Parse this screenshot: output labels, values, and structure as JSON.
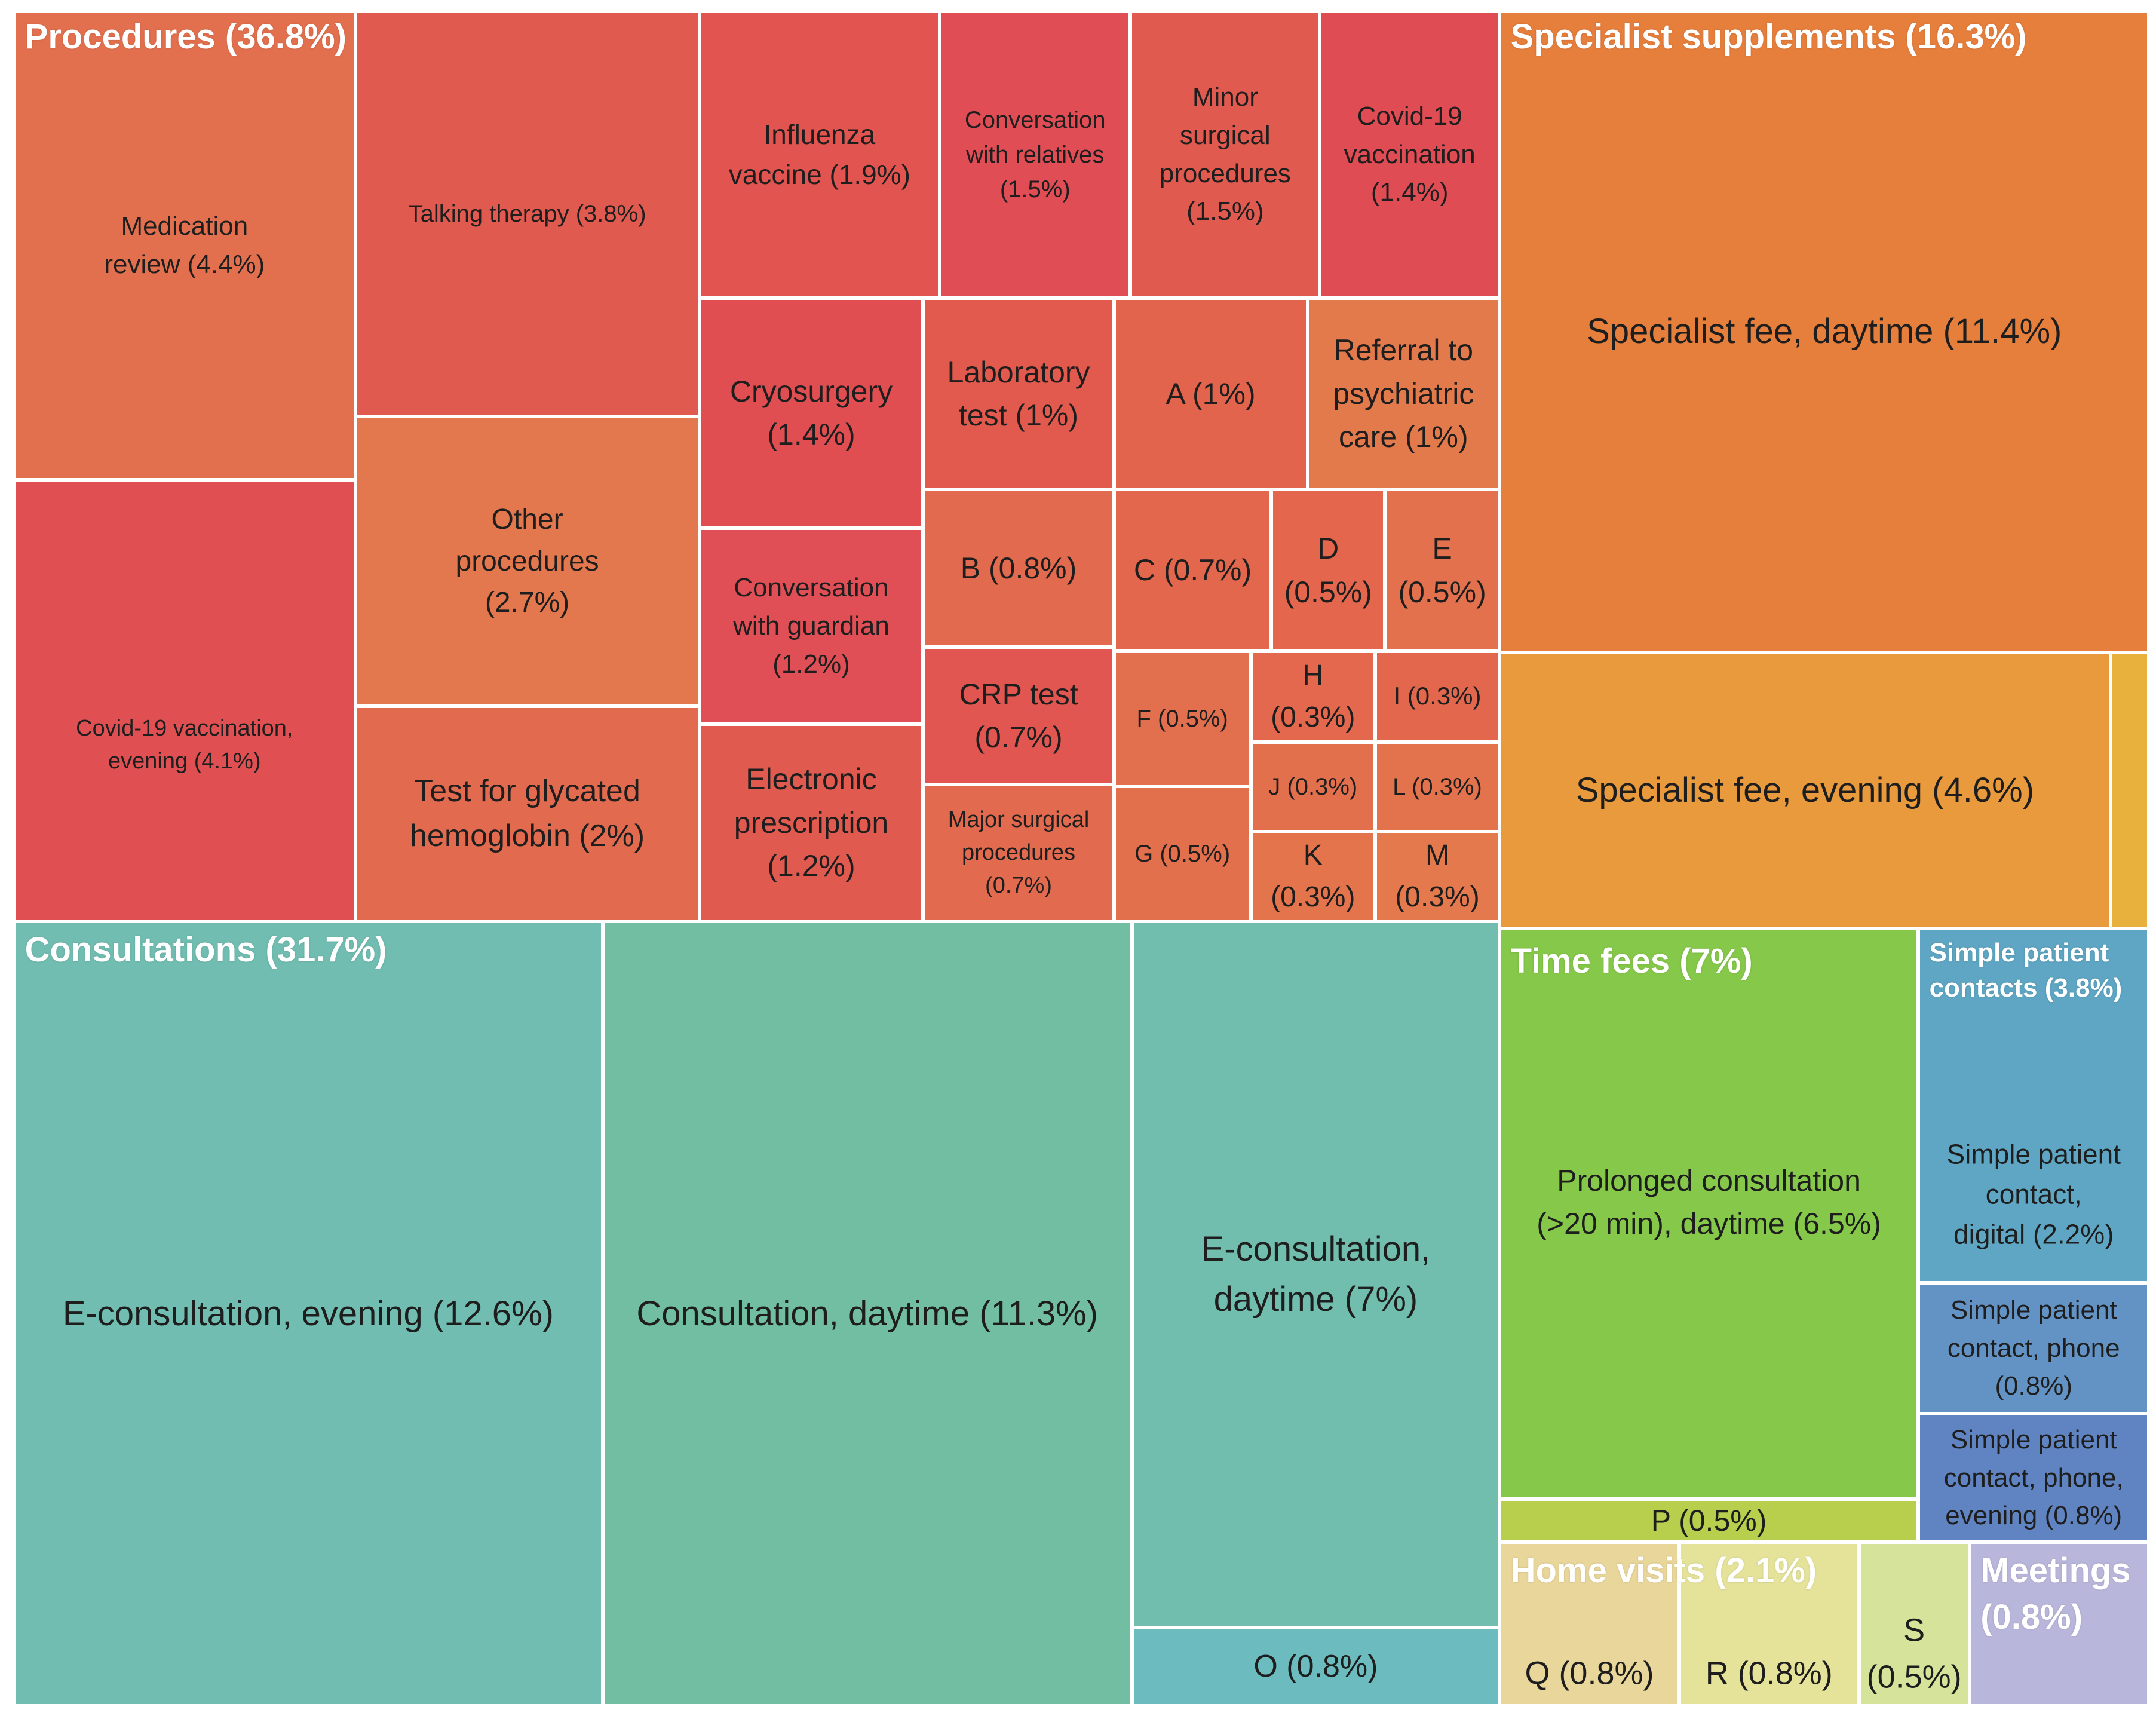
{
  "chart_data": {
    "type": "treemap",
    "title": "",
    "unit": "%",
    "groups": [
      {
        "label": "Procedures (36.8%)",
        "name": "Procedures",
        "value": 36.8,
        "color": "#e4604f",
        "items": [
          {
            "label": "Medication\nreview (4.4%)",
            "name": "Medication review",
            "value": 4.4,
            "color": "#e2704e"
          },
          {
            "label": "Covid-19 vaccination,\nevening (4.1%)",
            "name": "Covid-19 vaccination, evening",
            "value": 4.1,
            "color": "#e05052"
          },
          {
            "label": "Talking therapy (3.8%)",
            "name": "Talking therapy",
            "value": 3.8,
            "color": "#e15a4f"
          },
          {
            "label": "Other\nprocedures\n(2.7%)",
            "name": "Other procedures",
            "value": 2.7,
            "color": "#e3774d"
          },
          {
            "label": "Test for glycated\nhemoglobin (2%)",
            "name": "Test for glycated hemoglobin",
            "value": 2.0,
            "color": "#e26a4e"
          },
          {
            "label": "Influenza\nvaccine (1.9%)",
            "name": "Influenza vaccine",
            "value": 1.9,
            "color": "#e25450"
          },
          {
            "label": "Conversation\nwith relatives\n(1.5%)",
            "name": "Conversation with relatives",
            "value": 1.5,
            "color": "#e04d55"
          },
          {
            "label": "Minor\nsurgical\nprocedures\n(1.5%)",
            "name": "Minor surgical procedures",
            "value": 1.5,
            "color": "#e15a4f"
          },
          {
            "label": "Covid-19\nvaccination\n(1.4%)",
            "name": "Covid-19 vaccination",
            "value": 1.4,
            "color": "#e04c53"
          },
          {
            "label": "Cryosurgery\n(1.4%)",
            "name": "Cryosurgery",
            "value": 1.4,
            "color": "#e14e51"
          },
          {
            "label": "Laboratory\ntest (1%)",
            "name": "Laboratory test",
            "value": 1.0,
            "color": "#e25a4e"
          },
          {
            "label": "A (1%)",
            "name": "A",
            "value": 1.0,
            "color": "#e3644d"
          },
          {
            "label": "Referral to\npsychiatric\ncare (1%)",
            "name": "Referral to psychiatric care",
            "value": 1.0,
            "color": "#e37a4c"
          },
          {
            "label": "Conversation\nwith guardian\n(1.2%)",
            "name": "Conversation with guardian",
            "value": 1.2,
            "color": "#e04f56"
          },
          {
            "label": "Electronic\nprescription\n(1.2%)",
            "name": "Electronic prescription",
            "value": 1.2,
            "color": "#e15a4f"
          },
          {
            "label": "B (0.8%)",
            "name": "B",
            "value": 0.8,
            "color": "#e26a4e"
          },
          {
            "label": "C (0.7%)",
            "name": "C",
            "value": 0.7,
            "color": "#e3674d"
          },
          {
            "label": "D\n(0.5%)",
            "name": "D",
            "value": 0.5,
            "color": "#e3664d"
          },
          {
            "label": "E\n(0.5%)",
            "name": "E",
            "value": 0.5,
            "color": "#e3714d"
          },
          {
            "label": "CRP test\n(0.7%)",
            "name": "CRP test",
            "value": 0.7,
            "color": "#e15650"
          },
          {
            "label": "Major surgical\nprocedures\n(0.7%)",
            "name": "Major surgical procedures",
            "value": 0.7,
            "color": "#e26a4e"
          },
          {
            "label": "F (0.5%)",
            "name": "F",
            "value": 0.5,
            "color": "#e2704e"
          },
          {
            "label": "H\n(0.3%)",
            "name": "H",
            "value": 0.3,
            "color": "#e3684d"
          },
          {
            "label": "I (0.3%)",
            "name": "I",
            "value": 0.3,
            "color": "#e3674d"
          },
          {
            "label": "J (0.3%)",
            "name": "J",
            "value": 0.3,
            "color": "#e3704d"
          },
          {
            "label": "L (0.3%)",
            "name": "L",
            "value": 0.3,
            "color": "#e3734c"
          },
          {
            "label": "G (0.5%)",
            "name": "G",
            "value": 0.5,
            "color": "#e3704d"
          },
          {
            "label": "K\n(0.3%)",
            "name": "K",
            "value": 0.3,
            "color": "#e3744c"
          },
          {
            "label": "M\n(0.3%)",
            "name": "M",
            "value": 0.3,
            "color": "#e3794c"
          }
        ]
      },
      {
        "label": "Consultations (31.7%)",
        "name": "Consultations",
        "value": 31.7,
        "color": "#72bdb0",
        "items": [
          {
            "label": "E-consultation, evening (12.6%)",
            "name": "E-consultation, evening",
            "value": 12.6,
            "color": "#71bdb1"
          },
          {
            "label": "Consultation, daytime (11.3%)",
            "name": "Consultation, daytime",
            "value": 11.3,
            "color": "#72bea3"
          },
          {
            "label": "E-consultation,\ndaytime (7%)",
            "name": "E-consultation, daytime",
            "value": 7.0,
            "color": "#71bdae"
          },
          {
            "label": "O (0.8%)",
            "name": "O",
            "value": 0.8,
            "color": "#6cbbbf"
          }
        ]
      },
      {
        "label": "Specialist supplements (16.3%)",
        "name": "Specialist supplements",
        "value": 16.3,
        "color": "#e67e3c",
        "items": [
          {
            "label": "Specialist fee, daytime  (11.4%)",
            "name": "Specialist fee, daytime",
            "value": 11.4,
            "color": "#e67e3c"
          },
          {
            "label": "Specialist fee, evening (4.6%)",
            "name": "Specialist fee, evening",
            "value": 4.6,
            "color": "#e89a3c"
          },
          {
            "label": "",
            "name": "(unlabeled)",
            "value": 0.3,
            "color": "#e8b03c"
          }
        ]
      },
      {
        "label": "Time fees (7%)",
        "name": "Time fees",
        "value": 7.0,
        "color": "#86c84a",
        "items": [
          {
            "label": "Prolonged consultation\n(>20 min), daytime (6.5%)",
            "name": "Prolonged consultation (>20 min), daytime",
            "value": 6.5,
            "color": "#86c84a"
          },
          {
            "label": "P (0.5%)",
            "name": "P",
            "value": 0.5,
            "color": "#b7cf4d"
          }
        ]
      },
      {
        "label": "Simple patient\ncontacts (3.8%)",
        "name": "Simple patient contacts",
        "value": 3.8,
        "color": "#5ea4c3",
        "items": [
          {
            "label": "Simple patient\ncontact,\ndigital (2.2%)",
            "name": "Simple patient contact, digital",
            "value": 2.2,
            "color": "#5ea6c3"
          },
          {
            "label": "Simple patient\ncontact, phone\n(0.8%)",
            "name": "Simple patient contact, phone",
            "value": 0.8,
            "color": "#6393c4"
          },
          {
            "label": "Simple patient\ncontact, phone,\nevening (0.8%)",
            "name": "Simple patient contact, phone, evening",
            "value": 0.8,
            "color": "#5f84c1"
          }
        ]
      },
      {
        "label": "Home visits (2.1%)",
        "name": "Home visits",
        "value": 2.1,
        "color": "#e7d89a",
        "items": [
          {
            "label": "Q (0.8%)",
            "name": "Q",
            "value": 0.8,
            "color": "#e9d69a"
          },
          {
            "label": "R (0.8%)",
            "name": "R",
            "value": 0.8,
            "color": "#e5e39a"
          },
          {
            "label": "S\n(0.5%)",
            "name": "S",
            "value": 0.5,
            "color": "#d5e49a"
          }
        ]
      },
      {
        "label": "Meetings\n(0.8%)",
        "name": "Meetings",
        "value": 0.8,
        "color": "#b9b6db",
        "items": [
          {
            "label": "",
            "name": "Meetings",
            "value": 0.8,
            "color": "#b9b6db"
          }
        ]
      }
    ]
  }
}
